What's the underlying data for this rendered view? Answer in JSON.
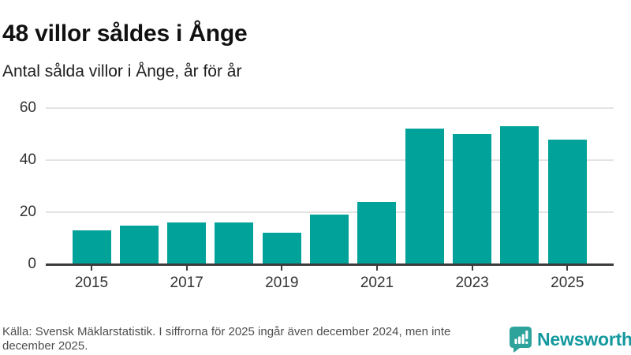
{
  "header": {
    "title": "48 villor såldes i Ånge",
    "subtitle": "Antal sålda villor i Ånge, år för år"
  },
  "chart_data": {
    "type": "bar",
    "title": "48 villor såldes i Ånge",
    "subtitle": "Antal sålda villor i Ånge, år för år",
    "categories": [
      "2015",
      "2016",
      "2017",
      "2018",
      "2019",
      "2020",
      "2021",
      "2022",
      "2023",
      "2024",
      "2025"
    ],
    "values": [
      13,
      15,
      16,
      16,
      12,
      19,
      24,
      52,
      50,
      53,
      48
    ],
    "xlabel": "",
    "ylabel": "",
    "ylim": [
      0,
      60
    ],
    "yticks": [
      0,
      20,
      40,
      60
    ],
    "xtick_labels": [
      "2015",
      "2017",
      "2019",
      "2021",
      "2023",
      "2025"
    ],
    "bar_color": "#00a29a",
    "grid": true,
    "legend": false
  },
  "footer": {
    "source": "Källa: Svensk Mäklarstatistik. I siffrorna för 2025 ingår även december 2024, men inte december 2025.",
    "brand": "Newsworthy"
  },
  "colors": {
    "accent": "#00a29a",
    "brand_teal": "#14999e",
    "logo_icon": "#2da39b",
    "axis": "#3c3c3c",
    "grid": "#e3e3e3",
    "title_text": "#111111",
    "muted_text": "#4e4e4e"
  }
}
